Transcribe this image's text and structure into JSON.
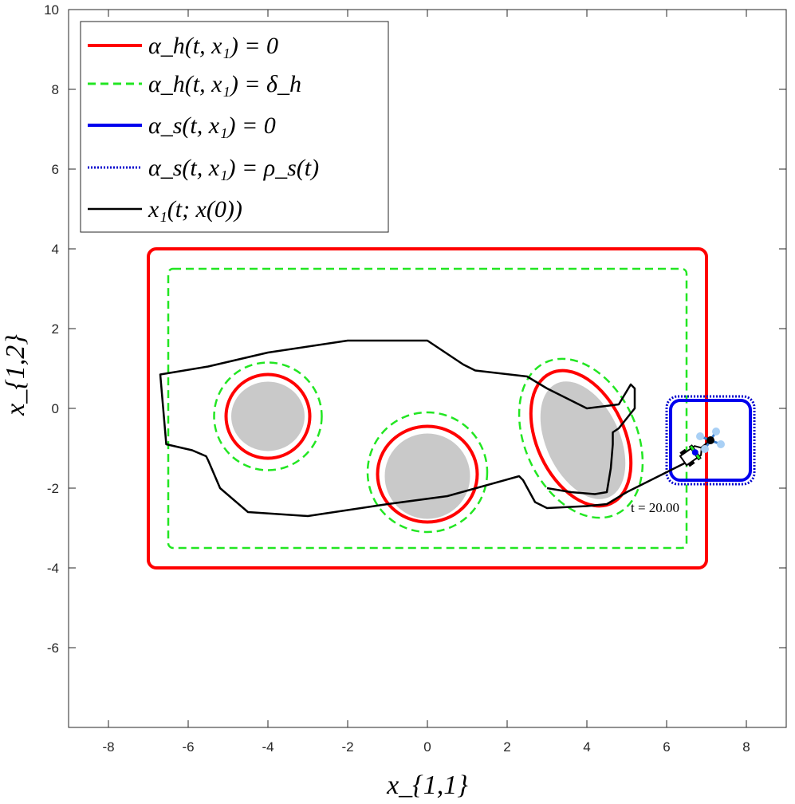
{
  "chart_data": {
    "type": "line",
    "title": "",
    "xlabel": "x_{1,1}",
    "ylabel": "x_{1,2}",
    "xlim": [
      -9,
      9
    ],
    "ylim": [
      -8,
      10
    ],
    "xticks": [
      "-8",
      "-6",
      "-4",
      "-2",
      "0",
      "2",
      "4",
      "6",
      "8"
    ],
    "yticks": [
      "10",
      "8",
      "6",
      "4",
      "2",
      "0",
      "-2",
      "-4",
      "-6"
    ],
    "grid": false,
    "legend_position": "top-left",
    "legend": [
      "α_h(t, x₁) = 0",
      "α_h(t, x₁) = δ_h",
      "α_s(t, x₁) = 0",
      "α_s(t, x₁) = ρ_s(t)",
      "x₁(t; x(0))"
    ],
    "colors": {
      "hard_boundary": "#ff0000",
      "hard_margin": "#22e622",
      "soft_boundary": "#0000ee",
      "soft_margin": "#0000cc",
      "trajectory": "#000000",
      "obstacle_fill": "#c9c9c9"
    },
    "workspace_boundary": {
      "x": [
        -7,
        7
      ],
      "y": [
        -4,
        4
      ]
    },
    "workspace_margin": {
      "x": [
        -6.5,
        6.5
      ],
      "y": [
        -3.5,
        3.5
      ]
    },
    "obstacles": [
      {
        "center": [
          -4,
          -0.2
        ],
        "rx": 0.95,
        "ry": 0.9,
        "angle": 0
      },
      {
        "center": [
          0,
          -1.7
        ],
        "rx": 1.1,
        "ry": 1.1,
        "angle": 0
      },
      {
        "center": [
          3.9,
          -0.8
        ],
        "rx": 0.95,
        "ry": 1.6,
        "angle": 25
      }
    ],
    "obstacle_boundaries": [
      {
        "center": [
          -4,
          -0.2
        ],
        "rx": 1.05,
        "ry": 1.05,
        "angle": 0
      },
      {
        "center": [
          0,
          -1.65
        ],
        "rx": 1.25,
        "ry": 1.2,
        "angle": 0
      },
      {
        "center": [
          3.85,
          -0.75
        ],
        "rx": 1.1,
        "ry": 1.8,
        "angle": 25
      }
    ],
    "obstacle_margins": [
      {
        "center": [
          -4,
          -0.2
        ],
        "rx": 1.35,
        "ry": 1.35,
        "angle": 0
      },
      {
        "center": [
          0,
          -1.6
        ],
        "rx": 1.5,
        "ry": 1.5,
        "angle": 0
      },
      {
        "center": [
          3.85,
          -0.75
        ],
        "rx": 1.4,
        "ry": 2.1,
        "angle": 25
      }
    ],
    "target_region": {
      "x": [
        6.1,
        8.1
      ],
      "y": [
        -1.8,
        0.2
      ]
    },
    "target_margin": {
      "x": [
        6.0,
        8.2
      ],
      "y": [
        -1.9,
        0.3
      ]
    },
    "trajectory": {
      "x": [
        3.0,
        3.6,
        4.2,
        4.5,
        4.6,
        4.65,
        4.65,
        4.8,
        5.2,
        5.2,
        5.1,
        4.8,
        4.0,
        3.0,
        2.5,
        1.2,
        0.9,
        0,
        -2,
        -4,
        -5.5,
        -6.7,
        -6.7,
        -6.55,
        -5.9,
        -5.55,
        -5.5,
        -5.2,
        -4.5,
        -3.0,
        -1.0,
        0.5,
        2.3,
        2.4,
        2.7,
        3.0,
        4.0,
        4.5,
        5.0,
        6.0,
        6.7
      ],
      "y": [
        -2.0,
        -2.1,
        -2.15,
        -2.1,
        -1.5,
        -0.9,
        -0.6,
        -0.5,
        0.0,
        0.5,
        0.6,
        0.1,
        0.0,
        0.5,
        0.8,
        0.95,
        1.1,
        1.7,
        1.7,
        1.4,
        1.05,
        0.85,
        0.85,
        -0.9,
        -1.05,
        -1.2,
        -1.3,
        -2.0,
        -2.6,
        -2.7,
        -2.4,
        -2.2,
        -1.7,
        -1.8,
        -2.35,
        -2.5,
        -2.45,
        -2.4,
        -2.1,
        -1.6,
        -1.25
      ]
    },
    "agent_positions": [
      [
        6.65,
        -1.15
      ],
      [
        7.1,
        -0.8
      ]
    ],
    "annotations": [
      {
        "text": "t = 20.00",
        "x": 5.1,
        "y": -2.6
      }
    ]
  }
}
